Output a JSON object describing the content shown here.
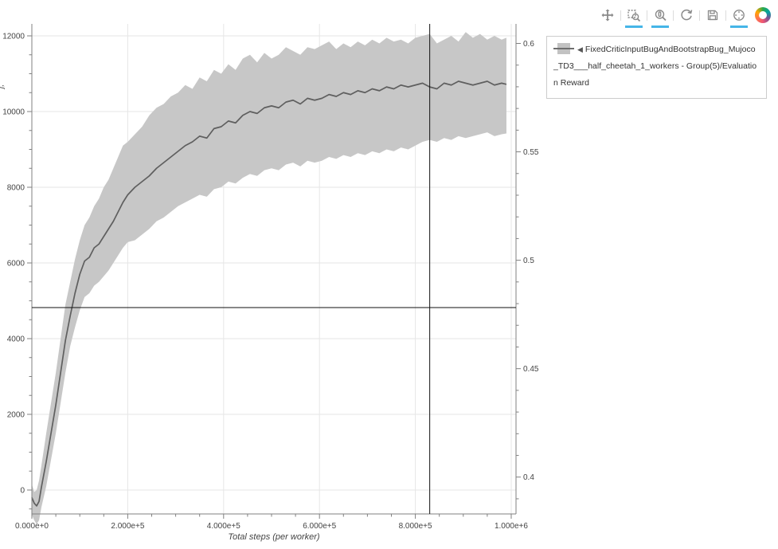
{
  "toolbar": {
    "active_color": "#45b5e8",
    "tools": [
      {
        "name": "pan",
        "active": false
      },
      {
        "name": "box-zoom",
        "active": true
      },
      {
        "name": "wheel-zoom",
        "active": true
      },
      {
        "name": "reset",
        "active": false
      },
      {
        "name": "save",
        "active": false
      },
      {
        "name": "hover",
        "active": true
      }
    ],
    "logo": "bokeh-logo"
  },
  "legend": {
    "collapse_marker": "◀",
    "label": "FixedCriticInputBugAndBootstrapBug_Mujoco_TD3___half_cheetah_1_workers - Group(5)/Evaluation Reward"
  },
  "axes": {
    "y_label_fragment": "j,"
  },
  "chart_data": {
    "type": "line",
    "title": "",
    "xlabel": "Total steps (per worker)",
    "ylabel": "",
    "grid": true,
    "legend_position": "top-right-outside",
    "x_axis": {
      "label": "Total steps (per worker)",
      "range": [
        0,
        1010000
      ],
      "major_ticks": [
        0,
        200000,
        400000,
        600000,
        800000,
        1000000
      ],
      "tick_labels": [
        "0.000e+0",
        "2.000e+5",
        "4.000e+5",
        "6.000e+5",
        "8.000e+5",
        "1.000e+6"
      ],
      "minor_step": 50000
    },
    "y_axis_left": {
      "range": [
        -632,
        12316
      ],
      "major_ticks": [
        0,
        2000,
        4000,
        6000,
        8000,
        10000,
        12000
      ],
      "tick_labels": [
        "0",
        "2000",
        "4000",
        "6000",
        "8000",
        "10000",
        "12000"
      ],
      "minor_step": 500
    },
    "y_axis_right": {
      "range": [
        0.383,
        0.609
      ],
      "major_ticks": [
        0.4,
        0.45,
        0.5,
        0.55,
        0.6
      ],
      "tick_labels": [
        "0.4",
        "0.45",
        "0.5",
        "0.55",
        "0.6"
      ],
      "minor_step": 0.01
    },
    "crosshair": {
      "x": 830000,
      "y": 4820
    },
    "colors": {
      "band": "#c7c7c7",
      "mean_line": "#5f5f5f",
      "grid_line": "#e6e6e6",
      "axis_line": "#808080",
      "tick_label": "#444444",
      "crosshair": "#111111"
    },
    "series": [
      {
        "name": "FixedCriticInputBugAndBootstrapBug_Mujoco_TD3___half_cheetah_1_workers - Group(5)/Evaluation Reward",
        "x": [
          0,
          5000,
          10000,
          15000,
          20000,
          30000,
          40000,
          50000,
          60000,
          70000,
          80000,
          90000,
          100000,
          110000,
          120000,
          130000,
          140000,
          150000,
          160000,
          170000,
          180000,
          190000,
          200000,
          215000,
          230000,
          245000,
          260000,
          275000,
          290000,
          305000,
          320000,
          335000,
          350000,
          365000,
          380000,
          395000,
          410000,
          425000,
          440000,
          455000,
          470000,
          485000,
          500000,
          515000,
          530000,
          545000,
          560000,
          575000,
          590000,
          605000,
          620000,
          635000,
          650000,
          665000,
          680000,
          695000,
          710000,
          725000,
          740000,
          755000,
          770000,
          785000,
          800000,
          815000,
          830000,
          845000,
          860000,
          875000,
          890000,
          905000,
          920000,
          935000,
          950000,
          965000,
          980000,
          990000
        ],
        "mean": [
          -200,
          -350,
          -420,
          -300,
          80,
          750,
          1500,
          2250,
          3100,
          3950,
          4600,
          5200,
          5700,
          6050,
          6150,
          6400,
          6500,
          6700,
          6900,
          7100,
          7350,
          7600,
          7800,
          8000,
          8150,
          8300,
          8500,
          8650,
          8800,
          8950,
          9100,
          9200,
          9350,
          9300,
          9550,
          9600,
          9750,
          9700,
          9900,
          10000,
          9950,
          10100,
          10150,
          10100,
          10250,
          10300,
          10200,
          10350,
          10300,
          10350,
          10450,
          10400,
          10500,
          10450,
          10550,
          10500,
          10600,
          10550,
          10650,
          10600,
          10700,
          10650,
          10700,
          10750,
          10650,
          10600,
          10750,
          10700,
          10800,
          10750,
          10700,
          10750,
          10800,
          10700,
          10750,
          10720
        ],
        "lower": [
          -650,
          -800,
          -900,
          -800,
          -450,
          100,
          800,
          1500,
          2300,
          3100,
          3800,
          4300,
          4750,
          5100,
          5200,
          5400,
          5500,
          5650,
          5800,
          6000,
          6200,
          6400,
          6550,
          6600,
          6750,
          6900,
          7100,
          7200,
          7350,
          7500,
          7600,
          7700,
          7800,
          7750,
          7950,
          8000,
          8150,
          8100,
          8250,
          8350,
          8300,
          8450,
          8500,
          8450,
          8600,
          8650,
          8550,
          8700,
          8650,
          8700,
          8800,
          8750,
          8850,
          8800,
          8900,
          8850,
          8950,
          8900,
          9000,
          8950,
          9050,
          9000,
          9100,
          9200,
          9250,
          9200,
          9300,
          9250,
          9350,
          9300,
          9350,
          9400,
          9450,
          9350,
          9400,
          9420
        ],
        "upper": [
          150,
          -50,
          0,
          250,
          650,
          1500,
          2300,
          3100,
          4000,
          4900,
          5500,
          6100,
          6600,
          7000,
          7200,
          7500,
          7700,
          8000,
          8200,
          8500,
          8800,
          9100,
          9200,
          9400,
          9600,
          9900,
          10100,
          10200,
          10400,
          10500,
          10700,
          10600,
          10900,
          10800,
          11100,
          11000,
          11250,
          11100,
          11400,
          11500,
          11300,
          11550,
          11400,
          11500,
          11700,
          11600,
          11500,
          11700,
          11650,
          11750,
          11850,
          11650,
          11800,
          11700,
          11850,
          11750,
          11900,
          11800,
          11950,
          11850,
          11900,
          11800,
          11950,
          12000,
          12050,
          11800,
          11900,
          12000,
          11850,
          12100,
          11950,
          12050,
          11900,
          12000,
          11900,
          11950
        ]
      }
    ]
  }
}
